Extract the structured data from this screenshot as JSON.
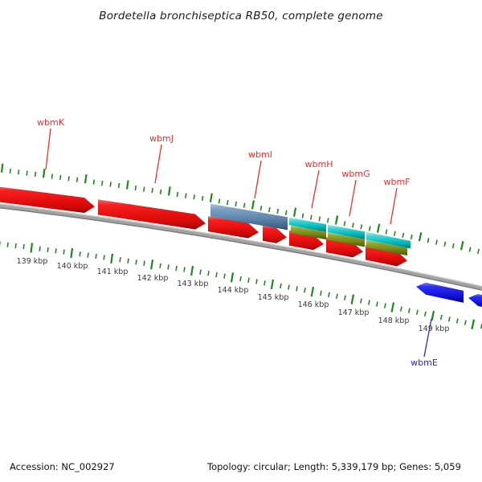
{
  "title": "Bordetella bronchiseptica RB50, complete genome",
  "gene_labels": [
    {
      "label": "wbmK",
      "color": "#f92b2b"
    },
    {
      "label": "wbmJ",
      "color": "#f92b2b"
    },
    {
      "label": "wbmI",
      "color": "#f92b2b"
    },
    {
      "label": "wbmH",
      "color": "#f92b2b"
    },
    {
      "label": "wbmG",
      "color": "#f92b2b"
    },
    {
      "label": "wbmF",
      "color": "#f92b2b"
    },
    {
      "label": "wbmE",
      "color": "#2929d6"
    }
  ],
  "ruler": {
    "unit_labels": [
      "139 kbp",
      "140 kbp",
      "141 kbp",
      "142 kbp",
      "143 kbp",
      "144 kbp",
      "145 kbp",
      "146 kbp",
      "147 kbp",
      "148 kbp",
      "149 kbp"
    ]
  },
  "footer": {
    "accession": "Accession: NC_002927",
    "topology": "Topology: circular; Length: 5,339,179 bp; Genes: 5,059"
  },
  "colors": {
    "forward_gene": "#e61010",
    "reverse_gene": "#1515e0",
    "highlight_blue": "#5e88ad",
    "highlight_cyan": "#00bfbf",
    "highlight_olive": "#778a16",
    "tick_green": "#1a8a1a",
    "backbone_gray": "#a3a3a3",
    "label_red": "#f92b2b",
    "label_blue": "#2929d6"
  }
}
